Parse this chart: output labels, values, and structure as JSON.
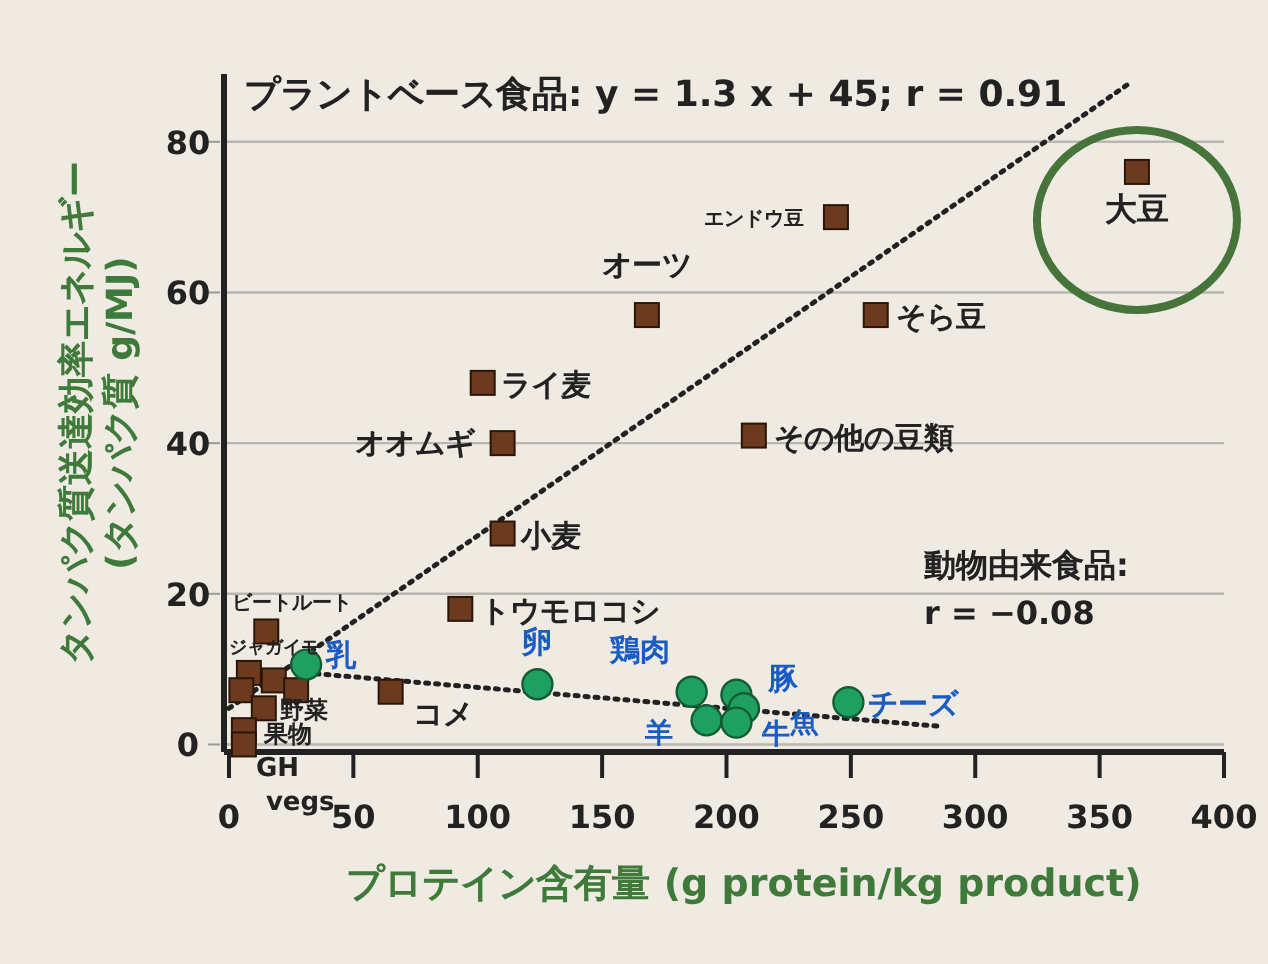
{
  "chart_data": {
    "type": "scatter",
    "xlabel": "プロテイン含有量 (g protein/kg product)",
    "ylabel": "タンパク質送達効率エネルギー (タンパク質 g/MJ)",
    "xlim": [
      -2,
      400
    ],
    "ylim": [
      -1,
      89
    ],
    "xticks": [
      0,
      50,
      100,
      150,
      200,
      250,
      300,
      350,
      400
    ],
    "yticks": [
      0,
      20,
      40,
      60,
      80
    ],
    "grid": "y",
    "series": [
      {
        "type": "scatter",
        "marker": "square",
        "color": "#6b3a1f",
        "x": [
          365,
          244,
          260,
          211,
          168,
          102,
          110,
          110,
          93,
          65,
          15,
          8,
          18,
          5,
          27,
          14,
          6,
          6
        ],
        "values": [
          76,
          70,
          57,
          41,
          57,
          48,
          40,
          28,
          18,
          7,
          15,
          9.5,
          8.5,
          7.2,
          7.2,
          4.8,
          1.9,
          0
        ]
      },
      {
        "type": "scatter",
        "marker": "circle",
        "color": "#1fa060",
        "x": [
          31,
          124,
          186,
          192,
          204,
          207,
          204,
          249
        ],
        "values": [
          10.6,
          8,
          7,
          3.2,
          6.6,
          4.8,
          2.9,
          5.6
        ]
      },
      {
        "type": "line",
        "line_style": "dotted",
        "marker": "none",
        "color": "#222222",
        "x": [
          0,
          363
        ],
        "values": [
          4.8,
          88
        ]
      },
      {
        "type": "line",
        "line_style": "dotted",
        "marker": "none",
        "color": "#222222",
        "x": [
          31,
          286
        ],
        "values": [
          9.5,
          2.4
        ]
      }
    ],
    "annotations": [
      {
        "text": "大豆",
        "x": 365,
        "y": 76
      },
      {
        "text": "エンドウ豆",
        "x": 244,
        "y": 70
      },
      {
        "text": "そら豆",
        "x": 260,
        "y": 57
      },
      {
        "text": "その他の豆類",
        "x": 211,
        "y": 41
      },
      {
        "text": "オーツ",
        "x": 168,
        "y": 57
      },
      {
        "text": "ライ麦",
        "x": 102,
        "y": 48
      },
      {
        "text": "オオムギ",
        "x": 110,
        "y": 40
      },
      {
        "text": "小麦",
        "x": 110,
        "y": 28
      },
      {
        "text": "トウモロコシ",
        "x": 93,
        "y": 18
      },
      {
        "text": "コメ",
        "x": 65,
        "y": 7
      },
      {
        "text": "ビートルート",
        "x": 15,
        "y": 15
      },
      {
        "text": "ジャガイモ",
        "x": 8,
        "y": 9.5
      },
      {
        "text": "野菜",
        "x": 27,
        "y": 7.2
      },
      {
        "text": "果物",
        "x": 6,
        "y": 1.9
      },
      {
        "text": "GH vegs",
        "x": 6,
        "y": 0
      },
      {
        "text": "乳",
        "x": 31,
        "y": 10.6
      },
      {
        "text": "卵",
        "x": 124,
        "y": 8
      },
      {
        "text": "鶏肉",
        "x": 186,
        "y": 7
      },
      {
        "text": "羊",
        "x": 192,
        "y": 3.2
      },
      {
        "text": "豚",
        "x": 204,
        "y": 6.6
      },
      {
        "text": "牛",
        "x": 204,
        "y": 2.9
      },
      {
        "text": "魚",
        "x": 207,
        "y": 4.8
      },
      {
        "text": "チーズ",
        "x": 249,
        "y": 5.6
      },
      "プラントベース食品: y = 1.3 x + 45; r = 0.91",
      "動物由来食品: r = −0.08"
    ]
  }
}
